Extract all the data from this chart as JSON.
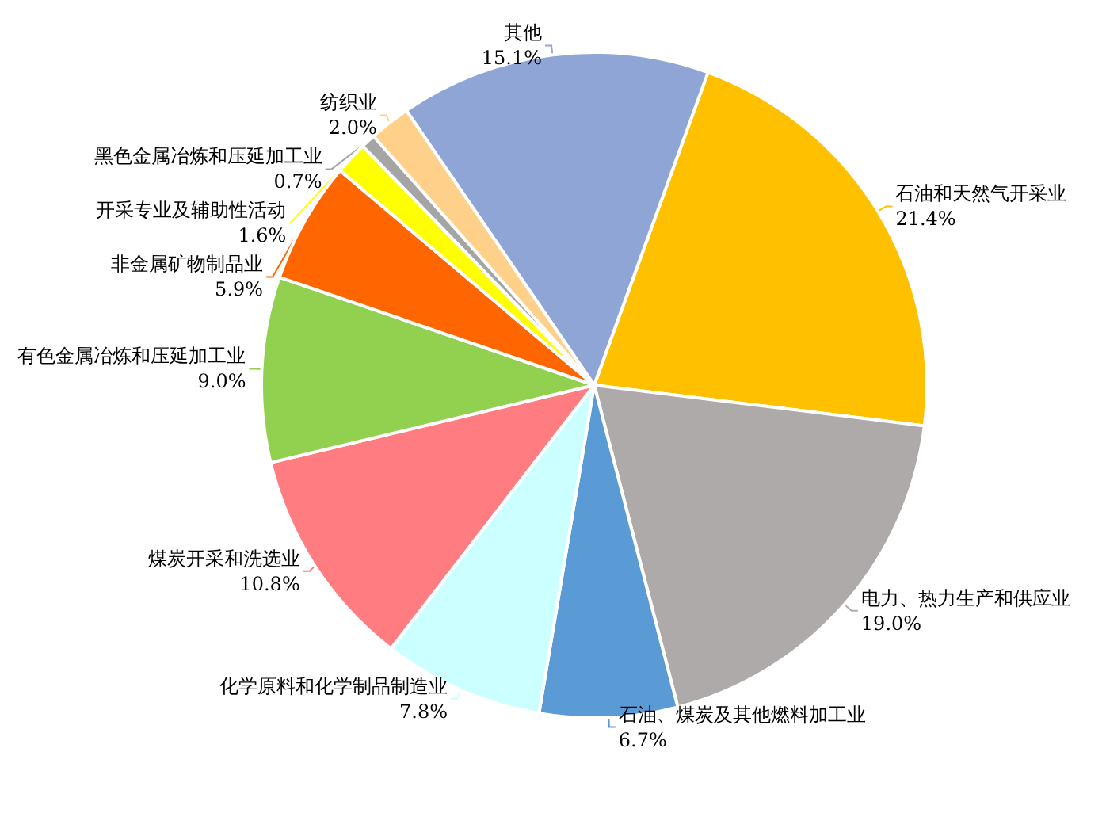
{
  "chart_data": {
    "type": "pie",
    "categories": [
      "石油和天然气开采业",
      "电力、热力生产和供应业",
      "石油、煤炭及其他燃料加工业",
      "化学原料和化学制品制造业",
      "煤炭开采和洗选业",
      "有色金属冶炼和压延加工业",
      "非金属矿物制品业",
      "开采专业及辅助性活动",
      "黑色金属冶炼和压延加工业",
      "纺织业",
      "其他"
    ],
    "values": [
      21.4,
      19.0,
      6.7,
      7.8,
      10.8,
      9.0,
      5.9,
      1.6,
      0.7,
      2.0,
      15.1
    ],
    "colors": [
      "#ffc000",
      "#aeaaaa",
      "#5b9bd5",
      "#ccffff",
      "#ff7c80",
      "#92d050",
      "#ff6600",
      "#ffff00",
      "#a5a5a5",
      "#ffd08a",
      "#8fa5d6"
    ],
    "value_labels": [
      "21.4%",
      "19.0%",
      "6.7%",
      "7.8%",
      "10.8%",
      "9.0%",
      "5.9%",
      "1.6%",
      "0.7%",
      "2.0%",
      "15.1%"
    ],
    "legend": false
  }
}
